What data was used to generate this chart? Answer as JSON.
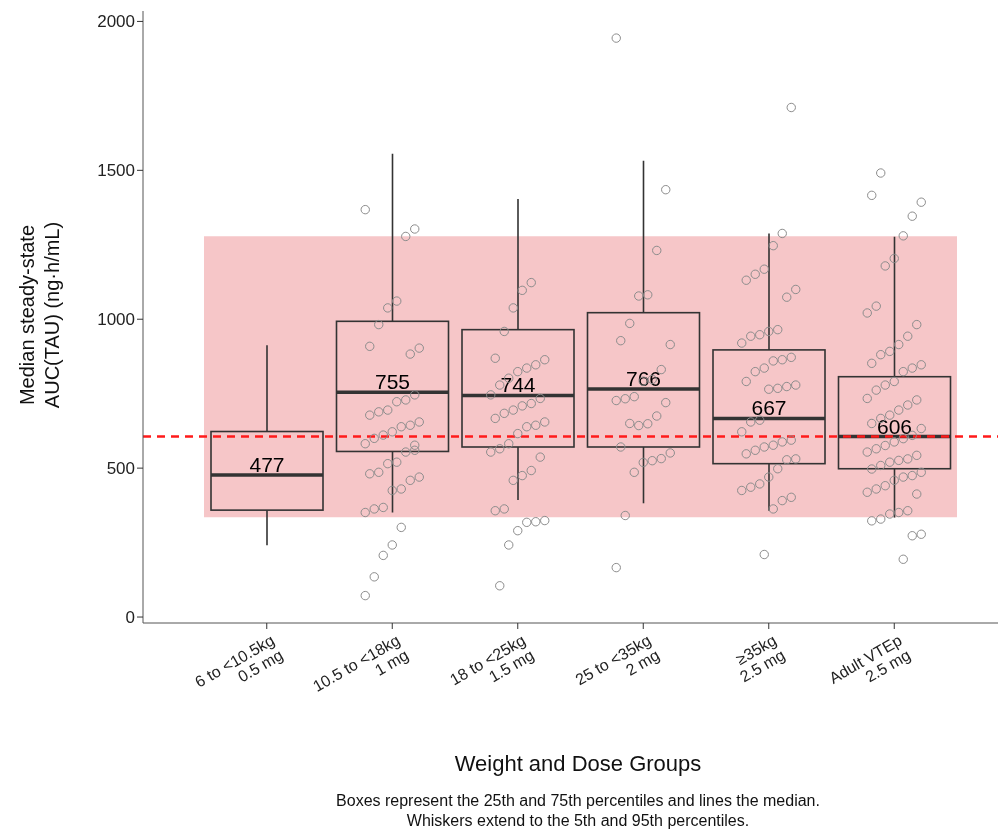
{
  "chart_data": {
    "type": "box",
    "xlabel": "Weight and Dose Groups",
    "ylabel": "Median steady-state\nAUC(TAU) (ng·h/mL)",
    "categories": [
      "6 to <10.5kg\n0.5 mg",
      "10.5 to <18kg\n1 mg",
      "18 to <25kg\n1.5 mg",
      "25 to <35kg\n2 mg",
      "≥35kg\n2.5 mg",
      "Adult VTEp\n2.5 mg"
    ],
    "color": "#333333",
    "boxes": [
      {
        "low": 241,
        "q1": 359,
        "median": 477,
        "q3": 623,
        "high": 913
      },
      {
        "low": 351,
        "q1": 556,
        "median": 755,
        "q3": 993,
        "high": 1556
      },
      {
        "low": 393,
        "q1": 571,
        "median": 744,
        "q3": 965,
        "high": 1404
      },
      {
        "low": 382,
        "q1": 571,
        "median": 766,
        "q3": 1022,
        "high": 1532
      },
      {
        "low": 357,
        "q1": 515,
        "median": 667,
        "q3": 897,
        "high": 1288
      },
      {
        "low": 334,
        "q1": 498,
        "median": 606,
        "q3": 807,
        "high": 1277
      }
    ],
    "value_labels": [
      "477",
      "755",
      "744",
      "766",
      "667",
      "606"
    ],
    "series": [
      {
        "type": "scatter",
        "color": "#8c8c8c",
        "marker": "circle",
        "x": [
          "10.5 to <18kg\n1 mg",
          "10.5 to <18kg\n1 mg",
          "10.5 to <18kg\n1 mg",
          "10.5 to <18kg\n1 mg",
          "10.5 to <18kg\n1 mg",
          "10.5 to <18kg\n1 mg",
          "10.5 to <18kg\n1 mg",
          "10.5 to <18kg\n1 mg",
          "10.5 to <18kg\n1 mg",
          "10.5 to <18kg\n1 mg",
          "10.5 to <18kg\n1 mg",
          "10.5 to <18kg\n1 mg",
          "10.5 to <18kg\n1 mg",
          "10.5 to <18kg\n1 mg",
          "10.5 to <18kg\n1 mg",
          "10.5 to <18kg\n1 mg",
          "10.5 to <18kg\n1 mg",
          "10.5 to <18kg\n1 mg",
          "10.5 to <18kg\n1 mg",
          "10.5 to <18kg\n1 mg",
          "10.5 to <18kg\n1 mg",
          "10.5 to <18kg\n1 mg",
          "10.5 to <18kg\n1 mg",
          "10.5 to <18kg\n1 mg",
          "10.5 to <18kg\n1 mg",
          "10.5 to <18kg\n1 mg",
          "10.5 to <18kg\n1 mg",
          "10.5 to <18kg\n1 mg",
          "10.5 to <18kg\n1 mg",
          "10.5 to <18kg\n1 mg",
          "10.5 to <18kg\n1 mg",
          "10.5 to <18kg\n1 mg",
          "10.5 to <18kg\n1 mg",
          "10.5 to <18kg\n1 mg",
          "10.5 to <18kg\n1 mg",
          "10.5 to <18kg\n1 mg",
          "10.5 to <18kg\n1 mg",
          "10.5 to <18kg\n1 mg",
          "10.5 to <18kg\n1 mg",
          "10.5 to <18kg\n1 mg",
          "10.5 to <18kg\n1 mg",
          "18 to <25kg\n1.5 mg",
          "18 to <25kg\n1.5 mg",
          "18 to <25kg\n1.5 mg",
          "18 to <25kg\n1.5 mg",
          "18 to <25kg\n1.5 mg",
          "18 to <25kg\n1.5 mg",
          "18 to <25kg\n1.5 mg",
          "18 to <25kg\n1.5 mg",
          "18 to <25kg\n1.5 mg",
          "18 to <25kg\n1.5 mg",
          "18 to <25kg\n1.5 mg",
          "18 to <25kg\n1.5 mg",
          "18 to <25kg\n1.5 mg",
          "18 to <25kg\n1.5 mg",
          "18 to <25kg\n1.5 mg",
          "18 to <25kg\n1.5 mg",
          "18 to <25kg\n1.5 mg",
          "18 to <25kg\n1.5 mg",
          "18 to <25kg\n1.5 mg",
          "18 to <25kg\n1.5 mg",
          "18 to <25kg\n1.5 mg",
          "18 to <25kg\n1.5 mg",
          "18 to <25kg\n1.5 mg",
          "18 to <25kg\n1.5 mg",
          "18 to <25kg\n1.5 mg",
          "18 to <25kg\n1.5 mg",
          "18 to <25kg\n1.5 mg",
          "18 to <25kg\n1.5 mg",
          "18 to <25kg\n1.5 mg",
          "18 to <25kg\n1.5 mg",
          "18 to <25kg\n1.5 mg",
          "18 to <25kg\n1.5 mg",
          "18 to <25kg\n1.5 mg",
          "18 to <25kg\n1.5 mg",
          "18 to <25kg\n1.5 mg",
          "18 to <25kg\n1.5 mg",
          "18 to <25kg\n1.5 mg",
          "25 to <35kg\n2 mg",
          "25 to <35kg\n2 mg",
          "25 to <35kg\n2 mg",
          "25 to <35kg\n2 mg",
          "25 to <35kg\n2 mg",
          "25 to <35kg\n2 mg",
          "25 to <35kg\n2 mg",
          "25 to <35kg\n2 mg",
          "25 to <35kg\n2 mg",
          "25 to <35kg\n2 mg",
          "25 to <35kg\n2 mg",
          "25 to <35kg\n2 mg",
          "25 to <35kg\n2 mg",
          "25 to <35kg\n2 mg",
          "25 to <35kg\n2 mg",
          "25 to <35kg\n2 mg",
          "25 to <35kg\n2 mg",
          "25 to <35kg\n2 mg",
          "25 to <35kg\n2 mg",
          "25 to <35kg\n2 mg",
          "25 to <35kg\n2 mg",
          "25 to <35kg\n2 mg",
          "25 to <35kg\n2 mg",
          "25 to <35kg\n2 mg",
          "25 to <35kg\n2 mg",
          "25 to <35kg\n2 mg",
          "25 to <35kg\n2 mg",
          "≥35kg\n2.5 mg",
          "≥35kg\n2.5 mg",
          "≥35kg\n2.5 mg",
          "≥35kg\n2.5 mg",
          "≥35kg\n2.5 mg",
          "≥35kg\n2.5 mg",
          "≥35kg\n2.5 mg",
          "≥35kg\n2.5 mg",
          "≥35kg\n2.5 mg",
          "≥35kg\n2.5 mg",
          "≥35kg\n2.5 mg",
          "≥35kg\n2.5 mg",
          "≥35kg\n2.5 mg",
          "≥35kg\n2.5 mg",
          "≥35kg\n2.5 mg",
          "≥35kg\n2.5 mg",
          "≥35kg\n2.5 mg",
          "≥35kg\n2.5 mg",
          "≥35kg\n2.5 mg",
          "≥35kg\n2.5 mg",
          "≥35kg\n2.5 mg",
          "≥35kg\n2.5 mg",
          "≥35kg\n2.5 mg",
          "≥35kg\n2.5 mg",
          "≥35kg\n2.5 mg",
          "≥35kg\n2.5 mg",
          "≥35kg\n2.5 mg",
          "≥35kg\n2.5 mg",
          "≥35kg\n2.5 mg",
          "≥35kg\n2.5 mg",
          "≥35kg\n2.5 mg",
          "≥35kg\n2.5 mg",
          "≥35kg\n2.5 mg",
          "≥35kg\n2.5 mg",
          "≥35kg\n2.5 mg",
          "≥35kg\n2.5 mg",
          "≥35kg\n2.5 mg",
          "≥35kg\n2.5 mg",
          "≥35kg\n2.5 mg",
          "≥35kg\n2.5 mg",
          "≥35kg\n2.5 mg",
          "≥35kg\n2.5 mg",
          "≥35kg\n2.5 mg",
          "Adult VTEp\n2.5 mg",
          "Adult VTEp\n2.5 mg",
          "Adult VTEp\n2.5 mg",
          "Adult VTEp\n2.5 mg",
          "Adult VTEp\n2.5 mg",
          "Adult VTEp\n2.5 mg",
          "Adult VTEp\n2.5 mg",
          "Adult VTEp\n2.5 mg",
          "Adult VTEp\n2.5 mg",
          "Adult VTEp\n2.5 mg",
          "Adult VTEp\n2.5 mg",
          "Adult VTEp\n2.5 mg",
          "Adult VTEp\n2.5 mg",
          "Adult VTEp\n2.5 mg",
          "Adult VTEp\n2.5 mg",
          "Adult VTEp\n2.5 mg",
          "Adult VTEp\n2.5 mg",
          "Adult VTEp\n2.5 mg",
          "Adult VTEp\n2.5 mg",
          "Adult VTEp\n2.5 mg",
          "Adult VTEp\n2.5 mg",
          "Adult VTEp\n2.5 mg",
          "Adult VTEp\n2.5 mg",
          "Adult VTEp\n2.5 mg",
          "Adult VTEp\n2.5 mg",
          "Adult VTEp\n2.5 mg",
          "Adult VTEp\n2.5 mg",
          "Adult VTEp\n2.5 mg",
          "Adult VTEp\n2.5 mg",
          "Adult VTEp\n2.5 mg",
          "Adult VTEp\n2.5 mg",
          "Adult VTEp\n2.5 mg",
          "Adult VTEp\n2.5 mg",
          "Adult VTEp\n2.5 mg",
          "Adult VTEp\n2.5 mg",
          "Adult VTEp\n2.5 mg",
          "Adult VTEp\n2.5 mg",
          "Adult VTEp\n2.5 mg",
          "Adult VTEp\n2.5 mg",
          "Adult VTEp\n2.5 mg",
          "Adult VTEp\n2.5 mg",
          "Adult VTEp\n2.5 mg",
          "Adult VTEp\n2.5 mg",
          "Adult VTEp\n2.5 mg",
          "Adult VTEp\n2.5 mg",
          "Adult VTEp\n2.5 mg",
          "Adult VTEp\n2.5 mg",
          "Adult VTEp\n2.5 mg",
          "Adult VTEp\n2.5 mg",
          "Adult VTEp\n2.5 mg",
          "Adult VTEp\n2.5 mg",
          "Adult VTEp\n2.5 mg",
          "Adult VTEp\n2.5 mg",
          "Adult VTEp\n2.5 mg",
          "Adult VTEp\n2.5 mg",
          "Adult VTEp\n2.5 mg",
          "Adult VTEp\n2.5 mg"
        ],
        "values": [
          1368,
          1303,
          1278,
          1061,
          1038,
          982,
          909,
          903,
          883,
          301,
          242,
          207,
          135,
          72,
          746,
          729,
          723,
          695,
          689,
          678,
          655,
          644,
          639,
          622,
          611,
          600,
          582,
          577,
          554,
          520,
          515,
          486,
          481,
          470,
          459,
          430,
          425,
          368,
          363,
          351,
          560,
          1123,
          1097,
          1038,
          959,
          869,
          864,
          847,
          836,
          824,
          802,
          779,
          746,
          734,
          717,
          709,
          695,
          684,
          667,
          655,
          644,
          639,
          616,
          582,
          565,
          554,
          537,
          492,
          475,
          459,
          363,
          357,
          324,
          320,
          318,
          290,
          242,
          105,
          1944,
          1435,
          1231,
          1082,
          1078,
          986,
          928,
          915,
          831,
          798,
          792,
          740,
          733,
          727,
          720,
          675,
          649,
          643,
          650,
          571,
          551,
          532,
          525,
          519,
          486,
          341,
          166,
          1711,
          1288,
          1247,
          1168,
          1151,
          1131,
          1100,
          1074,
          965,
          959,
          948,
          943,
          920,
          872,
          864,
          860,
          836,
          824,
          791,
          779,
          774,
          768,
          765,
          661,
          655,
          622,
          594,
          588,
          577,
          571,
          560,
          548,
          531,
          528,
          498,
          470,
          447,
          436,
          425,
          402,
          391,
          363,
          210,
          1491,
          1416,
          1393,
          1346,
          1280,
          1204,
          1179,
          1044,
          1021,
          982,
          943,
          915,
          892,
          881,
          852,
          847,
          836,
          824,
          791,
          779,
          762,
          734,
          729,
          712,
          695,
          678,
          667,
          650,
          633,
          610,
          599,
          588,
          576,
          565,
          554,
          543,
          531,
          526,
          520,
          509,
          497,
          486,
          475,
          470,
          459,
          441,
          430,
          419,
          413,
          357,
          351,
          346,
          329,
          323,
          278,
          273,
          194
        ]
      }
    ],
    "ylim": [
      -20,
      2035
    ],
    "yticks": [
      0,
      500,
      1000,
      1500,
      2000
    ],
    "bands": [
      {
        "axis": "y",
        "from": 335,
        "to": 1279,
        "color": "#f6c6c8"
      }
    ],
    "ref_lines": [
      {
        "axis": "y",
        "value": 606,
        "color": "#ff1a1a",
        "line_style": "dashed"
      }
    ],
    "annotations": [
      "Boxes represent the 25th and 75th percentiles and lines the median.",
      "Whiskers extend to the 5th and 95th percentiles."
    ]
  }
}
